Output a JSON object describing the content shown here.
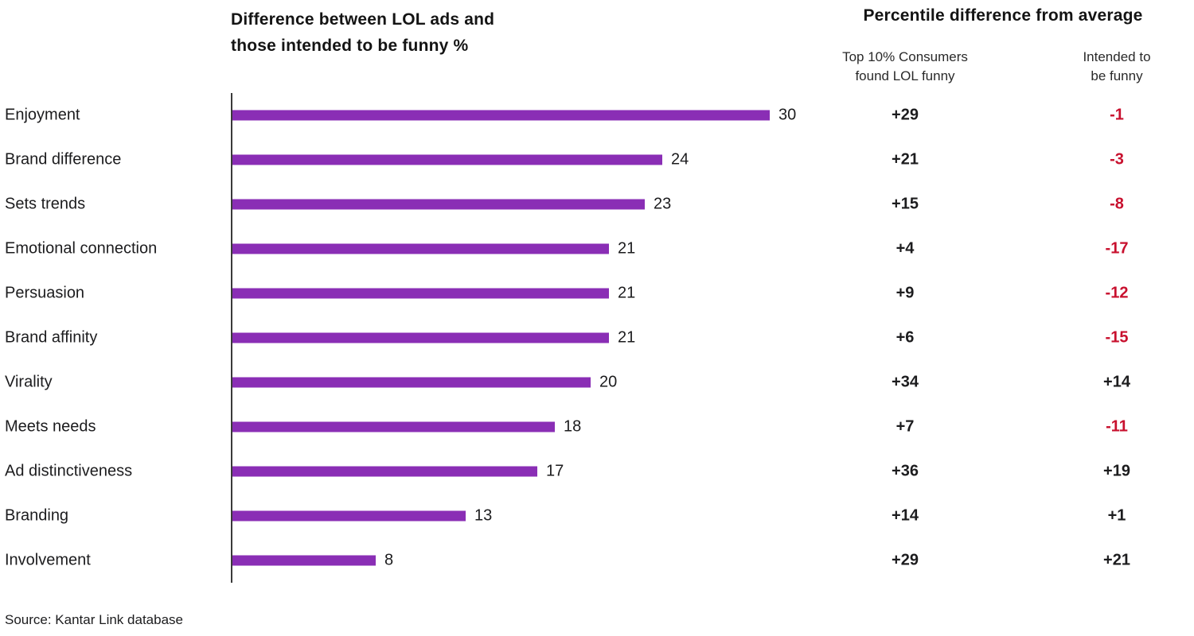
{
  "title": {
    "line1": "Difference between LOL ads and",
    "line2": "those intended to be funny %"
  },
  "right_header": "Percentile difference from average",
  "columns": {
    "col1": {
      "line1": "Top 10% Consumers",
      "line2": "found LOL funny"
    },
    "col2": {
      "line1": "Intended to",
      "line2": "be funny"
    }
  },
  "source": "Source: Kantar Link database",
  "colors": {
    "bar_purple": "#8A2EB5",
    "negative_red": "#C8102E",
    "positive_text": "#1C1C1E"
  },
  "chart_data": {
    "type": "bar",
    "orientation": "horizontal",
    "title": "Difference between LOL ads and those intended to be funny %",
    "categories": [
      "Enjoyment",
      "Brand difference",
      "Sets trends",
      "Emotional connection",
      "Persuasion",
      "Brand affinity",
      "Virality",
      "Meets needs",
      "Ad distinctiveness",
      "Branding",
      "Involvement"
    ],
    "values": [
      30,
      24,
      23,
      21,
      21,
      21,
      20,
      18,
      17,
      13,
      8
    ],
    "series": [
      {
        "name": "Difference between LOL ads and those intended to be funny %",
        "values": [
          30,
          24,
          23,
          21,
          21,
          21,
          20,
          18,
          17,
          13,
          8
        ]
      },
      {
        "name": "Top 10% Consumers found LOL funny",
        "values": [
          29,
          21,
          15,
          4,
          9,
          6,
          34,
          7,
          36,
          14,
          29
        ]
      },
      {
        "name": "Intended to be funny",
        "values": [
          -1,
          -3,
          -8,
          -17,
          -12,
          -15,
          14,
          -11,
          19,
          1,
          21
        ]
      }
    ],
    "xlabel": "",
    "ylabel": "",
    "xlim": [
      0,
      31
    ],
    "grid": false,
    "legend_position": "none",
    "value_labels": "shown at bar ends; percentile columns signed (+/-), negatives in red"
  }
}
